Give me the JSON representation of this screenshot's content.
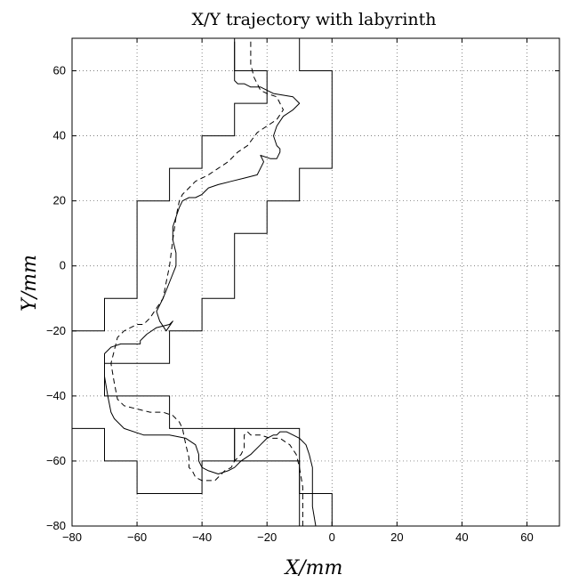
{
  "chart_data": {
    "type": "line",
    "title": "X/Y trajectory with labyrinth",
    "xlabel": "X/mm",
    "ylabel": "Y/mm",
    "xlim": [
      -80,
      70
    ],
    "ylim": [
      -80,
      70
    ],
    "xticks": [
      -80,
      -60,
      -40,
      -20,
      0,
      20,
      40,
      60
    ],
    "yticks": [
      -80,
      -60,
      -40,
      -20,
      0,
      20,
      40,
      60
    ],
    "grid": true,
    "labyrinth_walls": {
      "left": [
        [
          -30,
          70
        ],
        [
          -30,
          60
        ],
        [
          -20,
          60
        ],
        [
          -20,
          50
        ],
        [
          -30,
          50
        ],
        [
          -30,
          40
        ],
        [
          -40,
          40
        ],
        [
          -40,
          30
        ],
        [
          -50,
          30
        ],
        [
          -50,
          20
        ],
        [
          -60,
          20
        ],
        [
          -60,
          -10
        ],
        [
          -70,
          -10
        ],
        [
          -70,
          -20
        ],
        [
          -80,
          -20
        ],
        [
          -80,
          -50
        ],
        [
          -70,
          -50
        ],
        [
          -70,
          -60
        ],
        [
          -60,
          -60
        ],
        [
          -60,
          -70
        ],
        [
          -40,
          -70
        ],
        [
          -40,
          -60
        ],
        [
          -30,
          -60
        ],
        [
          -30,
          -50
        ],
        [
          -10,
          -50
        ],
        [
          -10,
          -80
        ]
      ],
      "right": [
        [
          -10,
          70
        ],
        [
          -10,
          60
        ],
        [
          0,
          60
        ],
        [
          0,
          30
        ],
        [
          -10,
          30
        ],
        [
          -10,
          20
        ],
        [
          -20,
          20
        ],
        [
          -20,
          10
        ],
        [
          -30,
          10
        ],
        [
          -30,
          -10
        ],
        [
          -40,
          -10
        ],
        [
          -40,
          -20
        ],
        [
          -50,
          -20
        ],
        [
          -50,
          -30
        ],
        [
          -70,
          -30
        ],
        [
          -70,
          -40
        ],
        [
          -50,
          -40
        ],
        [
          -50,
          -50
        ],
        [
          -30,
          -50
        ],
        [
          -30,
          -60
        ],
        [
          -10,
          -60
        ],
        [
          -10,
          -70
        ],
        [
          0,
          -70
        ],
        [
          0,
          -80
        ]
      ]
    },
    "series": [
      {
        "style": "solid",
        "x": [
          -30,
          -30,
          -29,
          -27,
          -25,
          -22,
          -18,
          -12,
          -10,
          -12,
          -15,
          -17,
          -18,
          -17,
          -16,
          -16,
          -17,
          -19,
          -22,
          -21,
          -23,
          -27,
          -31,
          -35,
          -38,
          -40,
          -42,
          -44,
          -46,
          -47,
          -48,
          -49,
          -49,
          -48,
          -48,
          -50,
          -52,
          -54,
          -53,
          -51,
          -49,
          -50,
          -54,
          -57,
          -59,
          -59,
          -60,
          -62,
          -65,
          -68,
          -70,
          -70,
          -69,
          -68,
          -67,
          -64,
          -58,
          -50,
          -45,
          -42,
          -41,
          -41,
          -40,
          -38,
          -35,
          -32,
          -30,
          -28,
          -25,
          -22,
          -20,
          -18,
          -17,
          -16,
          -14,
          -12,
          -10,
          -8,
          -7,
          -6,
          -6,
          -6,
          -5
        ],
        "y": [
          69,
          57,
          56,
          56,
          55,
          55,
          53,
          52,
          50,
          48,
          46,
          43,
          40,
          37,
          36,
          35,
          33,
          33,
          34,
          32,
          28,
          27,
          26,
          25,
          24,
          22,
          21,
          21,
          20,
          18,
          15,
          12,
          8,
          4,
          0,
          -5,
          -10,
          -14,
          -17,
          -20,
          -17,
          -18,
          -19,
          -21,
          -23,
          -24,
          -24,
          -24,
          -24,
          -25,
          -27,
          -34,
          -40,
          -45,
          -47,
          -50,
          -52,
          -52,
          -53,
          -55,
          -58,
          -60,
          -62,
          -63,
          -64,
          -63,
          -62,
          -60,
          -58,
          -55,
          -53,
          -52,
          -52,
          -51,
          -51,
          -52,
          -53,
          -55,
          -58,
          -62,
          -68,
          -74,
          -80
        ]
      },
      {
        "style": "dashed",
        "x": [
          -25,
          -25,
          -24,
          -22,
          -20,
          -17,
          -15,
          -17,
          -20,
          -23,
          -26,
          -29,
          -32,
          -35,
          -38,
          -40,
          -42,
          -44,
          -46,
          -47,
          -48,
          -49,
          -50,
          -51,
          -52,
          -54,
          -56,
          -58,
          -60,
          -62,
          -64,
          -66,
          -67,
          -68,
          -67,
          -66,
          -64,
          -60,
          -56,
          -52,
          -49,
          -47,
          -46,
          -45,
          -44,
          -44,
          -43,
          -42,
          -40,
          -38,
          -36,
          -33,
          -31,
          -30,
          -28,
          -27,
          -27,
          -26,
          -25,
          -24,
          -22,
          -19,
          -16,
          -13,
          -11,
          -10,
          -9,
          -9,
          -9
        ],
        "y": [
          69,
          62,
          58,
          54,
          53,
          52,
          48,
          45,
          43,
          41,
          37,
          35,
          32,
          30,
          28,
          27,
          26,
          24,
          22,
          20,
          15,
          8,
          0,
          -5,
          -10,
          -13,
          -16,
          -18,
          -18,
          -19,
          -20,
          -22,
          -26,
          -30,
          -36,
          -41,
          -43,
          -44,
          -45,
          -45,
          -46,
          -48,
          -50,
          -55,
          -59,
          -62,
          -63,
          -65,
          -66,
          -66,
          -66,
          -63,
          -62,
          -60,
          -58,
          -56,
          -52,
          -51,
          -52,
          -52,
          -52,
          -53,
          -53,
          -55,
          -58,
          -62,
          -68,
          -74,
          -80
        ]
      }
    ]
  }
}
